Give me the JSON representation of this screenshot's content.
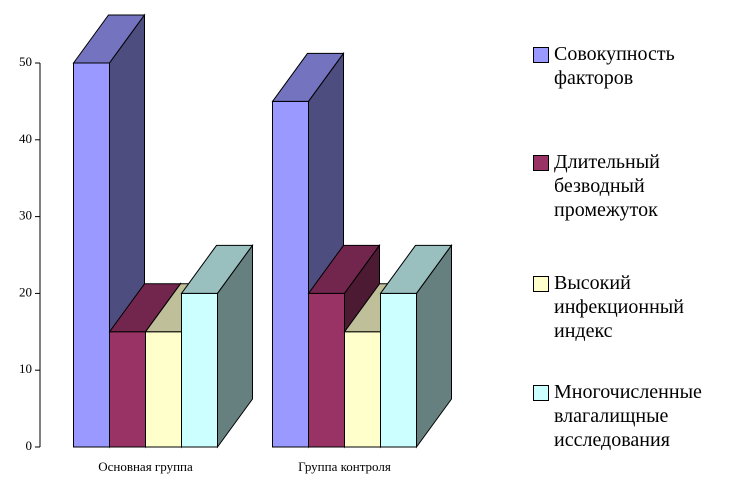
{
  "chart_data": {
    "type": "bar3d",
    "categories": [
      "Основная группа",
      "Группа контроля"
    ],
    "series": [
      {
        "name": "Совокупность факторов",
        "color": "#9999ff",
        "values": [
          50,
          45
        ]
      },
      {
        "name": "Длительный безводный промежуток",
        "color": "#993366",
        "values": [
          15,
          20
        ]
      },
      {
        "name": "Высокий инфекционный индекс",
        "color": "#ffffcc",
        "values": [
          15,
          15
        ]
      },
      {
        "name": "Многочисленные влагалищные исследования",
        "color": "#ccffff",
        "values": [
          20,
          20
        ]
      }
    ],
    "ylim": [
      0,
      50
    ],
    "yticks": [
      0,
      10,
      20,
      30,
      40,
      50
    ],
    "grid": false,
    "legend": "right"
  }
}
